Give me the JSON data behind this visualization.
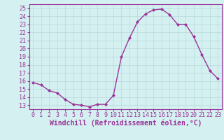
{
  "x": [
    0,
    1,
    2,
    3,
    4,
    5,
    6,
    7,
    8,
    9,
    10,
    11,
    12,
    13,
    14,
    15,
    16,
    17,
    18,
    19,
    20,
    21,
    22,
    23
  ],
  "y": [
    15.8,
    15.5,
    14.8,
    14.5,
    13.7,
    13.1,
    13.0,
    12.8,
    13.1,
    13.1,
    14.2,
    19.0,
    21.3,
    23.3,
    24.3,
    24.8,
    24.9,
    24.2,
    23.0,
    23.0,
    21.5,
    19.3,
    17.3,
    16.3
  ],
  "line_color": "#993399",
  "marker": "D",
  "marker_size": 2.0,
  "linewidth": 1.0,
  "bg_color": "#d4f0f0",
  "grid_color": "#b8dada",
  "xlabel": "Windchill (Refroidissement éolien,°C)",
  "xlabel_fontsize": 7,
  "ylabel_ticks": [
    13,
    14,
    15,
    16,
    17,
    18,
    19,
    20,
    21,
    22,
    23,
    24,
    25
  ],
  "xtick_labels": [
    "0",
    "1",
    "2",
    "3",
    "4",
    "5",
    "6",
    "7",
    "8",
    "9",
    "10",
    "11",
    "12",
    "13",
    "14",
    "15",
    "16",
    "17",
    "18",
    "19",
    "20",
    "21",
    "22",
    "23"
  ],
  "ylim": [
    12.5,
    25.5
  ],
  "xlim": [
    -0.5,
    23.5
  ],
  "tick_fontsize": 6,
  "label_color": "#993399",
  "spine_color": "#993399"
}
